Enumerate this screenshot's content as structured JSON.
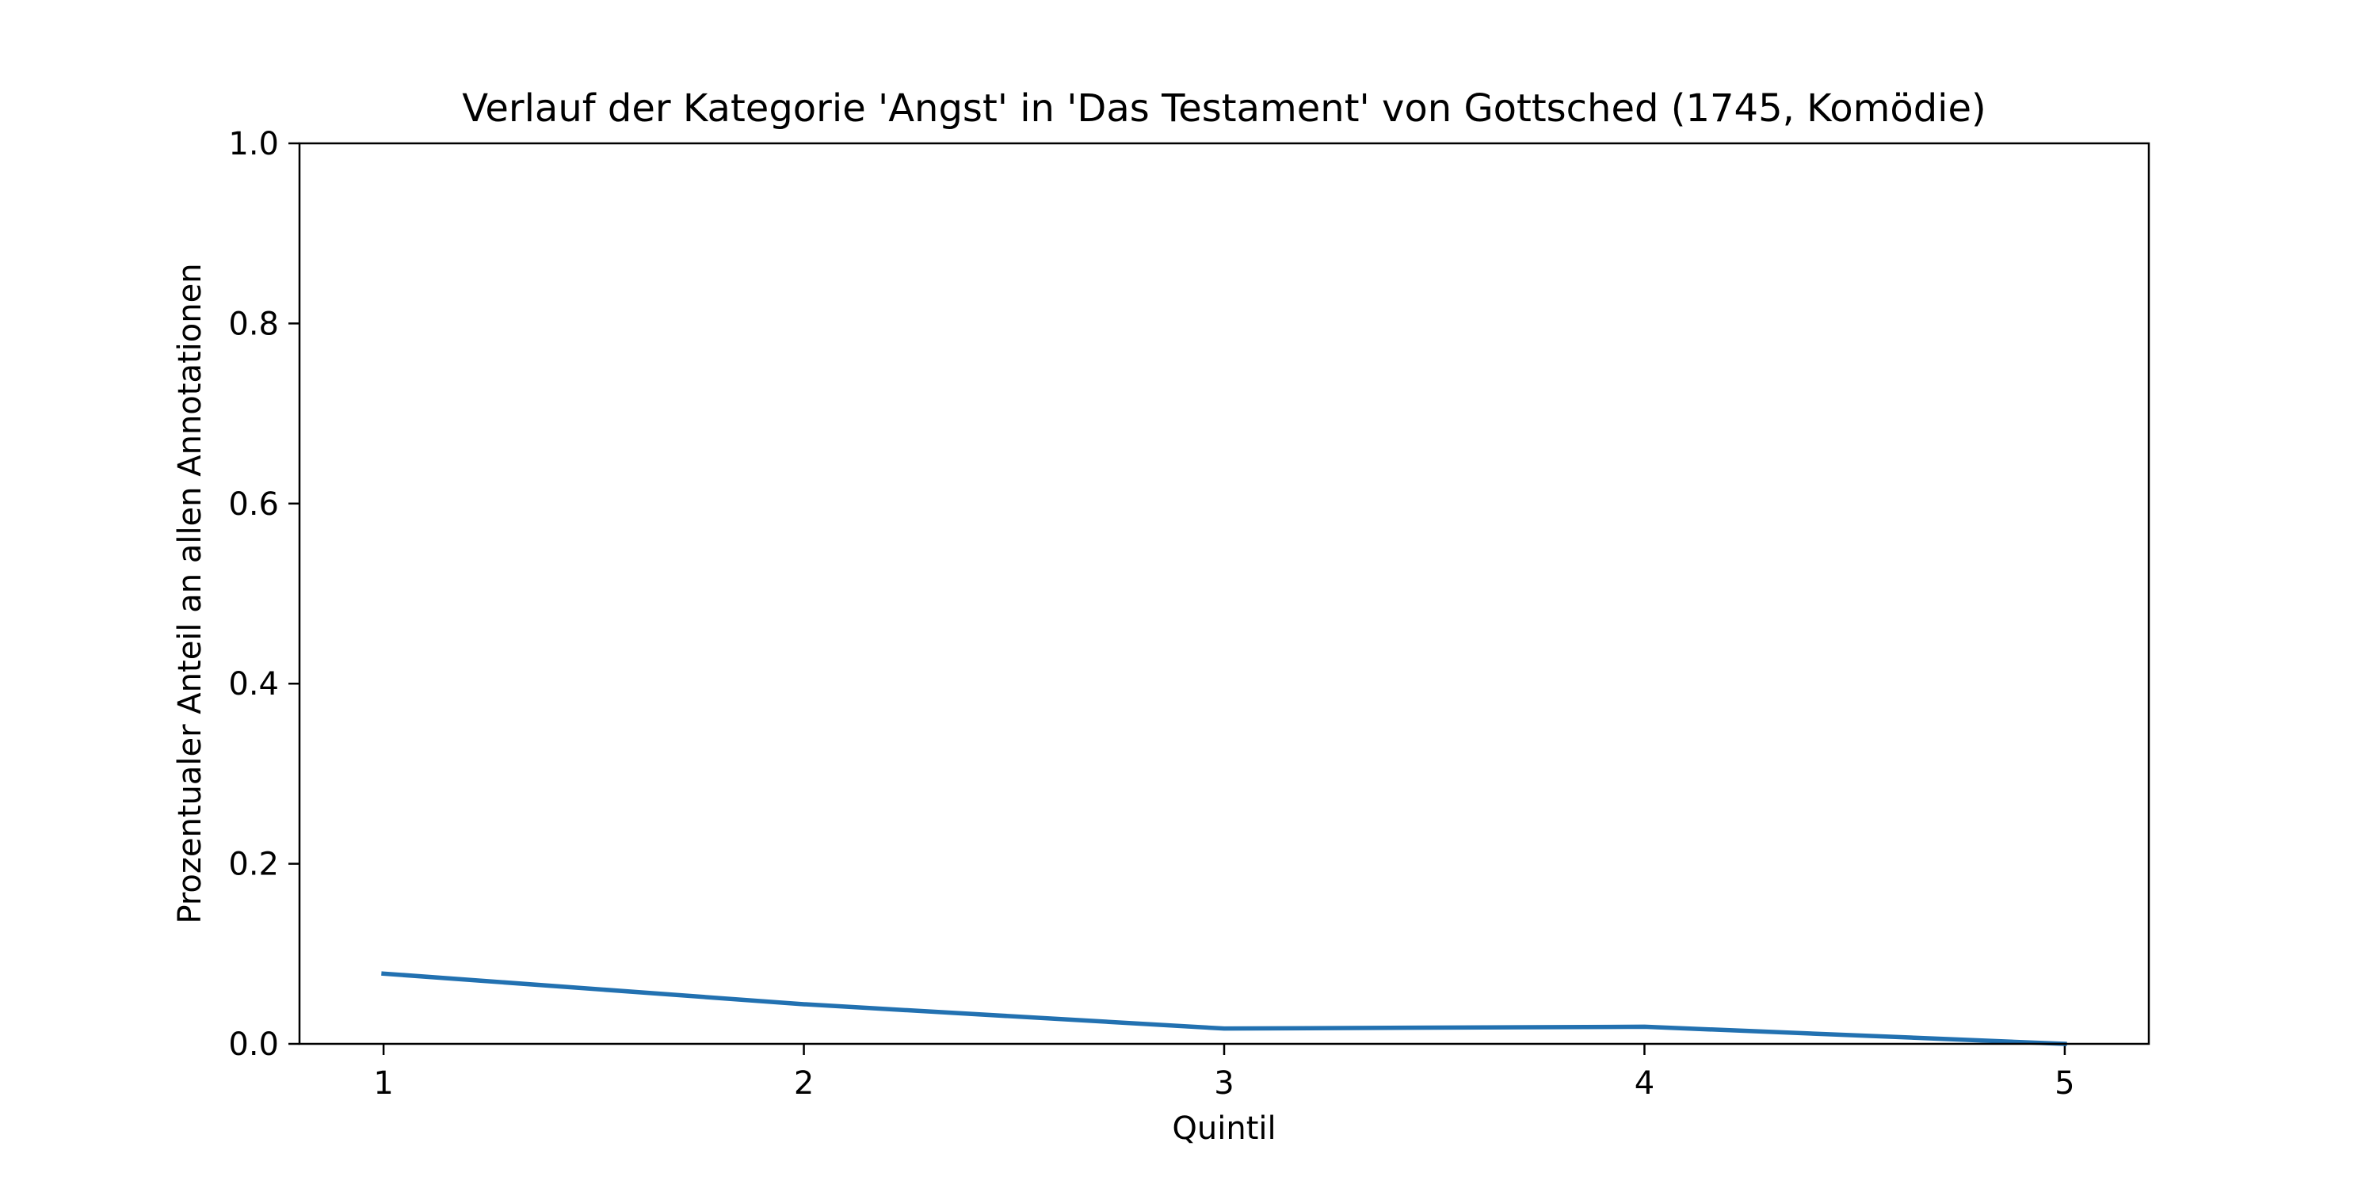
{
  "chart_data": {
    "type": "line",
    "title": "Verlauf der Kategorie 'Angst' in 'Das Testament' von Gottsched (1745, Komödie)",
    "xlabel": "Quintil",
    "ylabel": "Prozentualer Anteil an allen Annotationen",
    "x": [
      1,
      2,
      3,
      4,
      5
    ],
    "x_tick_labels": [
      "1",
      "2",
      "3",
      "4",
      "5"
    ],
    "y_tick_labels": [
      "0.0",
      "0.2",
      "0.4",
      "0.6",
      "0.8",
      "1.0"
    ],
    "y_ticks": [
      0,
      0.2,
      0.4,
      0.6,
      0.8,
      1.0
    ],
    "xlim": [
      0.8,
      5.2
    ],
    "ylim": [
      0,
      1.0
    ],
    "grid": false,
    "series": [
      {
        "values": [
          0.078,
          0.044,
          0.017,
          0.019,
          0.0
        ],
        "color": "#2271b1"
      }
    ]
  }
}
